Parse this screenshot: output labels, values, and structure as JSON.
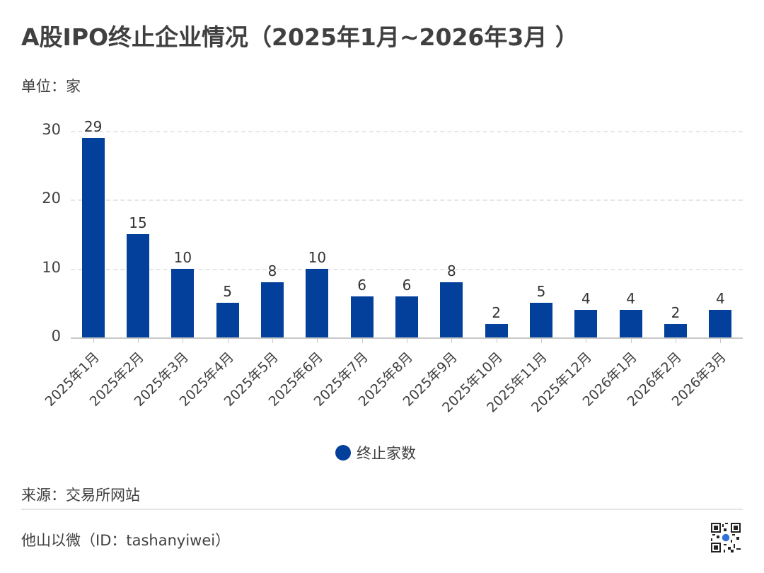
{
  "header": {
    "title": "A股IPO终止企业情况（2025年1月~2026年3月 ）",
    "unit": "单位：家"
  },
  "chart_data": {
    "type": "bar",
    "title": "A股IPO终止企业情况（2025年1月~2026年3月 ）",
    "subtitle": "单位：家",
    "categories": [
      "2025年1月",
      "2025年2月",
      "2025年3月",
      "2025年4月",
      "2025年5月",
      "2025年6月",
      "2025年7月",
      "2025年8月",
      "2025年9月",
      "2025年10月",
      "2025年11月",
      "2025年12月",
      "2026年1月",
      "2026年2月",
      "2026年3月"
    ],
    "series": [
      {
        "name": "终止家数",
        "color": "#03409b",
        "values": [
          29,
          15,
          10,
          5,
          8,
          10,
          6,
          6,
          8,
          2,
          5,
          4,
          4,
          2,
          4
        ]
      }
    ],
    "xlabel": "",
    "ylabel": "",
    "ylim": [
      0,
      30
    ],
    "yticks": [
      0,
      10,
      20,
      30
    ],
    "grid": true,
    "data_labels": true,
    "legend_position": "bottom"
  },
  "legend": {
    "label": "终止家数"
  },
  "footer": {
    "source": "来源：交易所网站",
    "credit": "他山以微（ID：tashanyiwei）",
    "qr_icon": "qr-code-icon"
  }
}
